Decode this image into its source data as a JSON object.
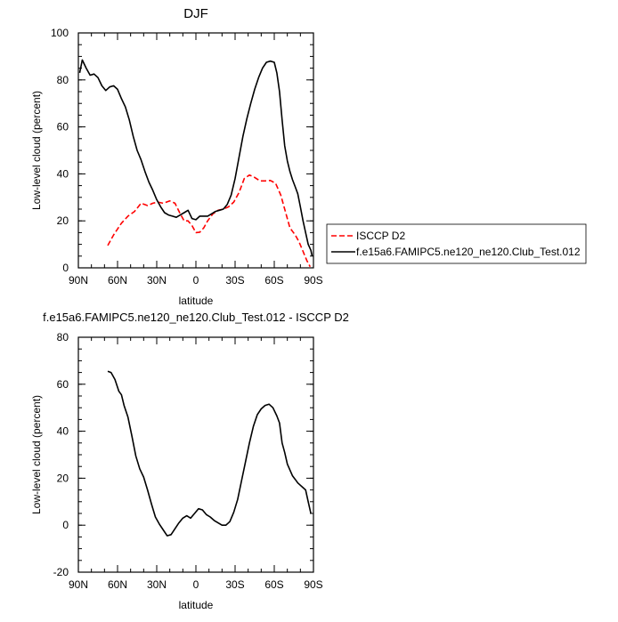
{
  "chart_data": [
    {
      "type": "line",
      "title": "DJF",
      "xlabel": "latitude",
      "ylabel": "Low-level cloud (percent)",
      "xlim": [
        90,
        -90
      ],
      "ylim": [
        0,
        100
      ],
      "x_ticks": [
        90,
        60,
        30,
        0,
        -30,
        -60,
        -90
      ],
      "x_tick_labels": [
        "90N",
        "60N",
        "30N",
        "0",
        "30S",
        "60S",
        "90S"
      ],
      "y_ticks": [
        0,
        20,
        40,
        60,
        80,
        100
      ],
      "y_tick_labels": [
        "0",
        "20",
        "40",
        "60",
        "80",
        "100"
      ],
      "legend_position": "right",
      "series": [
        {
          "name": "ISCCP D2",
          "color": "#ff0000",
          "dash": "dashed",
          "x": [
            67.5,
            63,
            57,
            52,
            47,
            42,
            37,
            33,
            29,
            25,
            20,
            16,
            12,
            9,
            6,
            3,
            0,
            -3,
            -6,
            -9,
            -13,
            -17,
            -21,
            -25,
            -29,
            -33,
            -37,
            -41,
            -45,
            -49,
            -53,
            -57,
            -61,
            -65,
            -68,
            -72,
            -76,
            -79,
            -82,
            -85,
            -87.5
          ],
          "y": [
            9.5,
            14,
            19,
            22,
            24,
            27.5,
            26.5,
            27.5,
            28,
            27.5,
            28.5,
            27.5,
            23,
            20,
            20,
            18,
            15,
            15.2,
            17,
            20,
            23,
            24.5,
            25,
            26,
            28,
            32,
            38,
            39.5,
            38.5,
            37,
            37,
            37.2,
            36,
            31,
            25,
            17,
            14,
            11,
            7,
            3,
            0.5
          ]
        },
        {
          "name": "f.e15a6.FAMIPC5.ne120_ne120.Club_Test.012",
          "color": "#000000",
          "dash": "solid",
          "x": [
            89,
            87,
            84,
            81,
            78,
            75,
            72,
            69,
            66,
            63,
            60,
            57,
            54,
            51,
            48,
            45,
            42,
            39,
            36,
            33,
            30,
            27,
            24,
            21,
            18,
            15,
            12,
            9,
            6,
            3,
            0,
            -3,
            -6,
            -9,
            -12,
            -15,
            -18,
            -21,
            -24,
            -27,
            -30,
            -33,
            -36,
            -39,
            -42,
            -45,
            -48,
            -51,
            -54,
            -57,
            -60,
            -62,
            -64,
            -66,
            -68,
            -70,
            -72,
            -74,
            -76,
            -78,
            -80,
            -82,
            -84,
            -86,
            -88,
            -89
          ],
          "y": [
            83,
            88.5,
            85,
            82,
            82.5,
            81,
            77.5,
            75.5,
            77,
            77.5,
            76,
            72,
            68.5,
            63,
            56,
            50,
            46,
            41,
            36.5,
            33,
            29,
            26,
            23.5,
            22.5,
            22,
            21.5,
            22.5,
            23.5,
            24.5,
            21,
            20.5,
            22,
            22,
            22,
            23,
            24,
            24.5,
            25,
            27,
            31,
            38,
            47,
            56,
            63.5,
            70,
            76,
            81,
            85,
            87.5,
            88,
            87.5,
            83,
            75,
            63,
            52,
            45.5,
            41,
            37.5,
            34.5,
            31.5,
            26,
            20,
            15,
            10,
            7.5,
            5
          ]
        }
      ]
    },
    {
      "type": "line",
      "title": "f.e15a6.FAMIPC5.ne120_ne120.Club_Test.012 - ISCCP D2",
      "xlabel": "latitude",
      "ylabel": "Low-level cloud (percent)",
      "xlim": [
        90,
        -90
      ],
      "ylim": [
        -20,
        80
      ],
      "x_ticks": [
        90,
        60,
        30,
        0,
        -30,
        -60,
        -90
      ],
      "x_tick_labels": [
        "90N",
        "60N",
        "30N",
        "0",
        "30S",
        "60S",
        "90S"
      ],
      "y_ticks": [
        -20,
        0,
        20,
        40,
        60,
        80
      ],
      "y_tick_labels": [
        "-20",
        "0",
        "20",
        "40",
        "60",
        "80"
      ],
      "series": [
        {
          "color": "#000000",
          "dash": "solid",
          "x": [
            67.5,
            65,
            62,
            59,
            57,
            55,
            52,
            49,
            46,
            43,
            40,
            37,
            34,
            31,
            28,
            25,
            22,
            19,
            16,
            13,
            10,
            7,
            4,
            1,
            -2,
            -5,
            -8,
            -11,
            -14,
            -17,
            -20,
            -23,
            -26,
            -29,
            -32,
            -35,
            -38,
            -41,
            -44,
            -47,
            -50,
            -53,
            -56,
            -59,
            -62,
            -64,
            -66,
            -68,
            -70,
            -72,
            -74,
            -76,
            -78,
            -80,
            -82,
            -84,
            -86,
            -88
          ],
          "y": [
            65.5,
            65,
            62,
            57,
            55.5,
            51,
            46,
            38,
            29.5,
            24,
            20.5,
            15,
            9,
            3.5,
            0.5,
            -2,
            -4.5,
            -4,
            -1.5,
            1,
            3,
            4,
            3,
            5,
            7,
            6.5,
            4.5,
            3.5,
            2,
            1,
            0,
            0,
            1.5,
            5.5,
            11,
            19,
            27,
            35,
            42,
            47,
            49.5,
            51,
            51.5,
            50,
            46.5,
            43.5,
            35,
            31,
            26,
            23.5,
            21,
            19.5,
            18,
            17,
            16,
            15,
            10,
            5
          ]
        }
      ]
    }
  ]
}
